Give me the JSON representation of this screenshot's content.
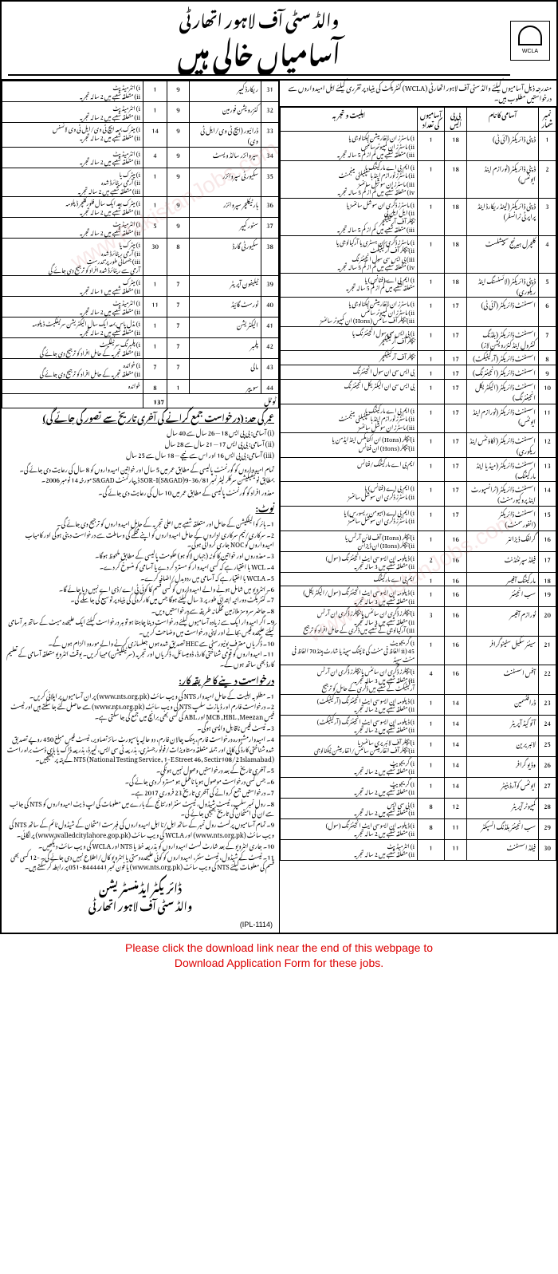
{
  "header": {
    "org": "والڈ سٹی آف لاہور اتھارٹی",
    "title": "آسامیاں خالی ہیں",
    "logo_text": "WCLA"
  },
  "intro": "مندرجہ ذیل آسامیوں کیلئے والڈ سٹی آف لاہور اتھارٹی (WCLA) کنٹریکٹ کی بنیاد پر تقرری کیلئے اہل امیدواروں سے درخواستیں مطلوب ہیں۔",
  "table_headers": {
    "sr": "نمبر شمار",
    "name": "آسامی کا نام",
    "bps": "بی پی ایس",
    "count": "آسامیوں کی تعداد",
    "qual": "اہلیت و تجربہ"
  },
  "jobs_right": [
    {
      "n": "1",
      "name": "ڈپٹی ڈائریکٹر (آئی ٹی)",
      "bps": "18",
      "c": "1",
      "q": "i) ماسٹرز ان انفارمیشن ٹیکنالوجی یا\nii) ماسٹرز ان کمپیوٹر سائنس\niii) متعلقہ شعبے میں کم از کم 5 سالہ تجربہ"
    },
    {
      "n": "2",
      "name": "ڈپٹی ڈائریکٹر (ٹورازم اینڈ ایونٹس)",
      "bps": "18",
      "c": "1",
      "q": "i) ایم بی اے مارکیٹنگ یا\nii) ماسٹرز ٹورازم اینڈ ہاسپٹیلٹی مینجمنٹ\niii) ماسٹرز ان سوشل سائنسز\niv) متعلقہ شعبے میں کم از کم 5 سالہ تجربہ"
    },
    {
      "n": "3",
      "name": "ڈپٹی ڈائریکٹر (لینڈ ریکارڈ اینڈ پراپرٹی ٹرانسفر)",
      "bps": "18",
      "c": "1",
      "q": "i) ماسٹرز ڈگری ان سوشل سائنسز یا\nii) ایل ایل بی\nبیچلر آف آرکیٹیکچر\niii) متعلقہ شعبے میں کم از کم 5 سالہ تجربہ"
    },
    {
      "n": "4",
      "name": "کلچرل ہیرٹیج سپیشلسٹ",
      "bps": "18",
      "c": "1",
      "q": "i) ماسٹرز ڈگری ان ہسٹری یا آرکیالوجی یا\nii) بیچلر آف آرکیٹیکٹ\niii) بی ایس سی سول انجینئرنگ\niv) متعلقہ شعبے میں کم از کم 5 سالہ تجربہ"
    },
    {
      "n": "5",
      "name": "ڈپٹی ڈائریکٹر (لائسنسنگ اینڈ ریکوری)",
      "bps": "18",
      "c": "1",
      "q": "i) ایم بی اے (فنانس) یا\nمتعلقہ شعبے میں کم از کم 5 سالہ تجربہ"
    },
    {
      "n": "6",
      "name": "اسسٹنٹ ڈائریکٹر (آئی ٹی)",
      "bps": "17",
      "c": "1",
      "q": "i) ماسٹرز ان انفارمیشن ٹیکنالوجی یا\nii) ماسٹرز ان کمپیوٹر سائنس\niii) بیچلر آف سائنس (Hons) ان کمپیوٹر سائنسز"
    },
    {
      "n": "7",
      "name": "اسسٹنٹ ڈائریکٹر (بلڈنگ کنٹرول اینڈ کنزرویشن لاز)",
      "bps": "17",
      "c": "1",
      "q": "i) بی ایس سی سول انجینئرنگ یا\nبیچلر آف آرکیٹیکچر"
    },
    {
      "n": "8",
      "name": "اسسٹنٹ ڈائریکٹر (آرکیٹیکٹ)",
      "bps": "17",
      "c": "1",
      "q": "بیچلر آف آرکیٹیکچر"
    },
    {
      "n": "9",
      "name": "اسسٹنٹ ڈائریکٹر (انجینئرنگ)",
      "bps": "17",
      "c": "1",
      "q": "بی ایس سی ان سول انجینئرنگ"
    },
    {
      "n": "10",
      "name": "اسسٹنٹ ڈائریکٹر (الیکٹریکل انجینئرنگ)",
      "bps": "17",
      "c": "1",
      "q": "بی ایس سی ان الیکٹریکل انجینئرنگ"
    },
    {
      "n": "11",
      "name": "اسسٹنٹ ڈائریکٹر (ٹورازم اینڈ ایونٹس)",
      "bps": "17",
      "c": "1",
      "q": "i) ایم بی اے مارکیٹنگ یا\nii) ماسٹرز ٹورازم اینڈ ہاسپٹیلٹی مینجمنٹ\niii) ماسٹرز ان سوشل سائنسز"
    },
    {
      "n": "12",
      "name": "اسسٹنٹ ڈائریکٹر (اکاؤنٹس اینڈ ریکوری)",
      "bps": "17",
      "c": "1",
      "q": "i) بیچلر (Hons) ان اکنامکس اینڈ ایڈمن یا\nii) بیچلر (Hons) ان فنانس"
    },
    {
      "n": "13",
      "name": "اسسٹنٹ ڈائریکٹر (میڈیا اینڈ مارکیٹنگ)",
      "bps": "17",
      "c": "1",
      "q": "ایم بی اے مارکیٹنگ/فنانس"
    },
    {
      "n": "14",
      "name": "اسسٹنٹ ڈائریکٹر (ٹرانسپورٹ اینڈ پروکیورمنٹ)",
      "bps": "17",
      "c": "1",
      "q": "i) ایم بی اے (فنانس) یا\nii) ماسٹرز ڈگری ان سوشل سائنسز"
    },
    {
      "n": "15",
      "name": "اسسٹنٹ ڈائریکٹر (انفورسمنٹ)",
      "bps": "17",
      "c": "1",
      "q": "i) ایم بی اے (ہیومن ریسورس) یا\nii) ماسٹرز ڈگری ان سوشل سائنسز"
    },
    {
      "n": "16",
      "name": "گرافک ڈیزائنر",
      "bps": "16",
      "c": "1",
      "q": "i) بیچلر (Hons) آف فائن آرٹس یا\nii) بیچلر (Hons) ان ڈیزائن"
    },
    {
      "n": "17",
      "name": "فیلڈ سپرنٹنڈنٹ",
      "bps": "16",
      "c": "2",
      "q": "i) ڈپلومہ ان ایسوسی ایٹ انجینئرنگ (سول)\nii) متعلقہ شعبے میں 3 سالہ تجربہ"
    },
    {
      "n": "18",
      "name": "مارکیٹنگ آفیسر",
      "bps": "16",
      "c": "1",
      "q": "ایم بی اے مارکیٹنگ"
    },
    {
      "n": "19",
      "name": "سب انجینئر",
      "bps": "16",
      "c": "1",
      "q": "i) ڈپلومہ ان ایسوسی ایٹ انجینئرنگ (سول/الیکٹریکل)\nii) متعلقہ شعبے میں 3 سالہ تجربہ"
    },
    {
      "n": "20",
      "name": "ٹورازم آفیسر",
      "bps": "16",
      "c": "3",
      "q": "i) بیچلرز ڈگری ان سائنس یا بیچلرز ڈگری ان آرٹس\nii) متعلقہ شعبے میں 3 سالہ تجربہ\niii) آرکیالوجی کے شعبے میں ڈگری کے حامل افراد کو ترجیح"
    },
    {
      "n": "21",
      "name": "سینئر سکیل سٹینوگرافر",
      "bps": "16",
      "c": "1",
      "q": "i) گریجویٹ\nii) 45 الفاظ فی منٹ کی ٹائپنگ سپیڈ یا شارٹ ہینڈ 70 الفاظ فی منٹ سپیڈ"
    },
    {
      "n": "22",
      "name": "آفس اسسٹنٹ",
      "bps": "16",
      "c": "4",
      "q": "i) بیچلرز ڈگری ان سائنس یا بیچلرز ڈگری ان آرٹس\nii) متعلقہ شعبے میں 3 سالہ تجربہ\nآرکیٹیکٹ کے شعبے میں ڈگری کے حامل کو ترجیح"
    },
    {
      "n": "23",
      "name": "ڈرافٹسمین",
      "bps": "14",
      "c": "1",
      "q": "i) ڈپلومہ ان ایسوسی ایٹ انجینئرنگ (آرکیٹیکٹ)\nii) متعلقہ شعبے میں 2 سالہ تجربہ"
    },
    {
      "n": "24",
      "name": "آٹو کیڈ آپریٹر",
      "bps": "14",
      "c": "1",
      "q": "i) ڈپلومہ ان ایسوسی ایٹ انجینئرنگ (آرکیٹیکٹ)\nii) متعلقہ شعبے میں 2 سالہ تجربہ"
    },
    {
      "n": "25",
      "name": "لائبریرین",
      "bps": "14",
      "c": "1",
      "q": "i) بیچلر آف لائبریری سائنسز یا\nii) بیچلر آف انفارمیشن سائنس/انفارمیشن ٹیکنالوجی"
    },
    {
      "n": "26",
      "name": "وڈیو گرافر",
      "bps": "14",
      "c": "1",
      "q": "i) گریجویٹ\nii) متعلقہ شعبے میں 2 سالہ تجربہ"
    },
    {
      "n": "27",
      "name": "ایونٹس کوآرڈینیٹر",
      "bps": "14",
      "c": "1",
      "q": "i) گریجویٹ\nii) متعلقہ شعبے میں 2 سالہ تجربہ"
    },
    {
      "n": "28",
      "name": "کمپیوٹر آپریٹر",
      "bps": "12",
      "c": "8",
      "q": "i) بی سی ایس\nii) متعلقہ شعبے میں 2 سالہ تجربہ"
    },
    {
      "n": "29",
      "name": "سب انجینئر بلڈنگ انسپکٹر",
      "bps": "11",
      "c": "8",
      "q": "i) ڈپلومہ ان ایسوسی ایٹ انجینئرنگ (سول)\nii) متعلقہ شعبے میں 2 سالہ تجربہ"
    },
    {
      "n": "30",
      "name": "فیلڈ اسسٹنٹ",
      "bps": "11",
      "c": "1",
      "q": "i) انٹرمیڈیٹ\nii) متعلقہ شعبے میں 2 سالہ تجربہ"
    }
  ],
  "jobs_left": [
    {
      "n": "31",
      "name": "ریکارڈ کیپر",
      "bps": "9",
      "c": "1",
      "q": "i) انٹرمیڈیٹ\nii) متعلقہ شعبے میں 2 سالہ تجربہ"
    },
    {
      "n": "32",
      "name": "کنزرویشن فورمین",
      "bps": "9",
      "c": "1",
      "q": "i) انٹرمیڈیٹ\nii) متعلقہ شعبے میں 2 سالہ تجربہ"
    },
    {
      "n": "33",
      "name": "ڈرائیور (ایچ ٹی وی/ایل ٹی وی)",
      "bps": "9",
      "c": "14",
      "q": "i) میٹرک بمعہ ایچ ٹی وی/ایل ٹی وی لائسنس\nii) متعلقہ شعبے میں 2 سالہ تجربہ"
    },
    {
      "n": "34",
      "name": "سپروائزر سالڈ ویسٹ",
      "bps": "9",
      "c": "4",
      "q": "i) انٹرمیڈیٹ\nii) متعلقہ شعبے میں 2 سالہ تجربہ"
    },
    {
      "n": "35",
      "name": "سکیورٹی سپروائزر",
      "bps": "9",
      "c": "1",
      "q": "i) میٹرک یا\nii) آرمی ریٹائرڈ شدہ\niii) متعلقہ شعبے میں 2 سالہ تجربہ"
    },
    {
      "n": "36",
      "name": "ہارٹیکلچر سپروائزر",
      "bps": "9",
      "c": "1",
      "q": "i) میٹرک بعد ایک سال فلورکلچر ڈپلومہ\nii) متعلقہ شعبے میں 2 سالہ تجربہ"
    },
    {
      "n": "37",
      "name": "سٹور کیپر",
      "bps": "9",
      "c": "5",
      "q": "i) انٹرمیڈیٹ\nii) متعلقہ شعبے میں 2 سالہ تجربہ"
    },
    {
      "n": "38",
      "name": "سکیورٹی گارڈ",
      "bps": "8",
      "c": "30",
      "q": "i) میٹرک یا\nii) آرمی ریٹائرڈ شدہ\niii) جسمانی طور پر تندرست\nآرمی سے ریٹائرڈ شدہ افراد کو ترجیح دی جائے گی"
    },
    {
      "n": "39",
      "name": "ٹیلیفون آپریٹر",
      "bps": "7",
      "c": "1",
      "q": "i) میٹرک\nii) متعلقہ شعبے میں 1 سالہ تجربہ"
    },
    {
      "n": "40",
      "name": "ٹورسٹ گائیڈ",
      "bps": "7",
      "c": "11",
      "q": "i) انٹرمیڈیٹ\nii) متعلقہ شعبے میں 2 سالہ تجربہ"
    },
    {
      "n": "41",
      "name": "الیکٹریشن",
      "bps": "7",
      "c": "1",
      "q": "i) مڈل پاس بمعہ ایک سال الیکٹریشن سرٹیفکیٹ ڈپلومہ\nii) متعلقہ شعبے میں 2 سالہ تجربہ"
    },
    {
      "n": "42",
      "name": "پلمبر",
      "bps": "7",
      "c": "1",
      "q": "i) پلمبرنگ سرٹیفکیٹ\nii) متعلقہ تجربہ کے حامل افراد کو ترجیح دی جائے گی"
    },
    {
      "n": "43",
      "name": "مالی",
      "bps": "7",
      "c": "7",
      "q": "i) خواندہ\nii) متعلقہ تجربہ کے حامل افراد کو ترجیح دی جائے گی"
    },
    {
      "n": "44",
      "name": "سویپر",
      "bps": "1",
      "c": "8",
      "q": "خواندہ"
    }
  ],
  "total_label": "ٹوٹل",
  "total_count": "137",
  "age_limit": {
    "title": "عمر کی حد: (درخواست جمع کرانے کی آخری تاریخ سے تصور کی جائے گی)",
    "col1": "آسامی",
    "col2": "عمر",
    "rows": [
      {
        "a": "(i)",
        "b": "آسامی: بی پی ایس 18",
        "c": "26 سال سے 40 سال"
      },
      {
        "a": "(ii)",
        "b": "آسامی: بی پی ایس 17",
        "c": "21 سال سے 28 سال"
      },
      {
        "a": "(iii)",
        "b": "آسامی: بی پی ایس 16 اور اس سے نیچے",
        "c": "18 سال سے 25 سال"
      }
    ],
    "note4": "تمام امیدواروں کو گورنمنٹ پالیسی کے مطابق عمر میں 5 سال اور خواتین امیدواروں کو 8 سال کی رعایت دی جائے گی۔ بمطابق نوٹیفیکیشن سرکلر لیٹر نمبر 36/81-SOR-I(S&GAD)9 ڈیپارٹمنٹ S&GAD مورخہ 14 نومبر 2006۔",
    "note5": "معذور افراد کو گورنمنٹ پالیسی کے مطابق عمر میں 10 سال کی رعایت دی جائے گی۔"
  },
  "notes": {
    "title": "نوٹ:",
    "items": [
      "ہائر کوالیفکیشن کے حامل اور متعلقہ شعبے میں اعلیٰ تجربہ کے حامل امیدواروں کو ترجیح دی جائے گی۔",
      "سرکاری/نیم سرکاری اداروں کے حامل امیدواروں کو اپنے محکمے کی وساطت سے درخواست دینی ہوگی اور کامیاب امیدواروں کو NOC جاری کروانی ہوگی۔",
      "معذوروں اور خواتین کا کوٹہ (جہاں لاگو ہو) حکومت پالیسی کے مطابق ملحوظ ہوگا۔",
      "WCL با اختیار ہے کہ کسی امیدوار کو مسترد کر دے یا آسامی کو منسوخ کر دے۔",
      "WCLA با اختیار ہے کہ آسامی میں ردوبدل/اضافہ کرے۔",
      "انٹرویو میں شامل ہونے والے امیدواروں کو کسی قسم کا کوئی ٹی اے/ڈی اے نہیں دیا جائے گا۔",
      "کنٹریکٹ دورانیہ ابتدائی طور پر 3 سال کیلئے ہوگا جس میں کارکردگی کی بنیاد پر توسیع کی جا سکے گی۔",
      "حاضر سروسز ملازمین محکمانہ طریقہ سے درخواستیں دیں۔",
      "اگر امیدوار ایک سے زیادہ آسامیوں کیلئے درخواست دینا چاہتا ہو تو ہر درخواست کیلئے ایک علیحدہ میٹ کے ساتھ ہر آسامی کیلئے علیحدہ فیس بجانے اور اپنی درخواست میں وضاحت کریں۔",
      "ڈگریاں معترف یونیورسٹی سے HEC تصدیق شدہ ہوں جعلسازی کرنے والے مورود الزام ہوں گے۔",
      "امیدواروں کو قومی شناختی کارڈ، ڈومیسائل، ڈگریاں اور تجربہ (سرٹیفکیشن) مہیا کریں۔ بوقت انٹرویو متعلقہ آسامی کے تعلیم کارڈ بھی ساتھ ہوں گے۔"
    ]
  },
  "how_to_apply": {
    "title": "درخواست دینے کا طریقہ کار:",
    "items": [
      "مطلوبہ اہلیت کے حامل امیدوار NTS کی ویب سائٹ (www.nts.org.pk) پر ان آسامیوں پر اپلائی کریں۔",
      "درخواست فارم اور ڈپازٹ سلپ NTS کی ویب سائٹ (www.nts.org.pk) سے حاصل کئے جا سکتے ہیں اور ٹیسٹ فیس MCB ,HBL ,Meezan اور ABL کی کسی بھی برانچ میں جمع کی جا سکتی ہے۔",
      "ٹیسٹ فیس ناقابل واپسی ہوگی۔",
      "امیدوارمشہورہ درخواست فارم، بینک چالان فارم، دو حالیہ پاسپورٹ سائز تصاویر، ٹیسٹ فیس مبلغ 450 روپے تصدیق شدہ شناختی کارڈ کی کاپی اور جملہ متعلقہ دستاویزات/فوٹو رجسٹری، بذریعہ ٹی سی ایس، لیپرڈ، بذریعہ ڈاک یا بای ڈسٹ براہ راست (National Testing Service, 1-E Street 46, Sectir108/2 Islamabad) NTS کے پتہ پر بھیجیں۔",
      "آخری تاریخ کے بعد درخواستیں وصول نہیں ہونگی۔",
      "جس کسی درخواست موصول ہویا نامکمل ہو مسترد کر دی جائے گی۔",
      "درخواستیں جمع کروانے کی آخری تاریخ 23 فروری 2017 ہے۔",
      "رول نمبر سلپ، ٹیسٹ شیڈول، ٹیسٹ سنٹراور نتائج کے بارے میں معلومات کی اپ ڈیٹ امیدواروں کو NTS کی جانب سے ان کی امتحان کی تاریخ بھیجی جائے گی۔",
      "تمام آسامیوں پرلسٹ رول نمبر کے ساتھ اہل/نا اہل امیدواروں کی فہرست امتحان کے شیڈول ٹائم کے ساتھ NTS کی ویب سائٹ (www.nts.org.pk) اور WCLA کی ویب سائٹ (www.walledcitylahore.gop.pk) پرلگائی۔",
      "جاری انٹرویو کے بعد شارٹ لسٹ امیدواروں کو بذریعہ خط یا NTS اور WCLA کی ویب سائٹ دیکھیں۔",
      "ٹیسٹ کے شیڈول، ٹیسٹ سنٹر، امیدواروں کو کوئی علیحدہ دستی یا انٹرویو کال/اطلاع نہیں دی جائے گی۔ -12 کسی بھی قسم کی معلومات کیلئے NTS کی ویب سائٹ (www.nts.org.pk) یا فون نمبر 8444441-051 پر رابطہ کر سکتے ہیں۔"
    ]
  },
  "signature": {
    "line1": "ڈائریکٹر ایڈمنسٹریشن",
    "line2": "والڈ سٹی آف لاہور اتھارٹی"
  },
  "ipl": "(IPL-1114)",
  "footer": "Please click the download link near the end of this webpage to\nDownload Application Form for these jobs.",
  "watermark": "www.PakistanJobs.com",
  "colors": {
    "border": "#000000",
    "text": "#000000",
    "footer_text": "#dd0000",
    "watermark": "rgba(200,100,100,0.15)"
  }
}
